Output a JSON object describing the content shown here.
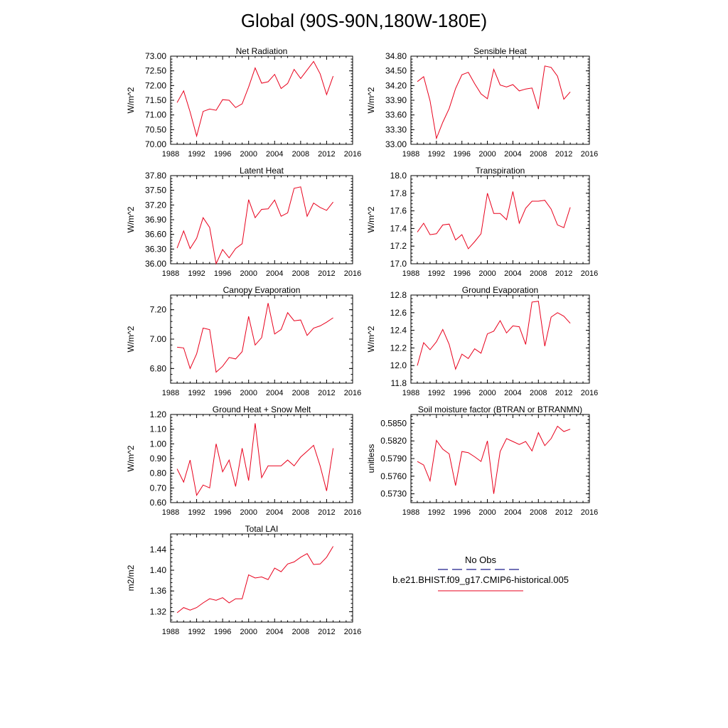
{
  "page": {
    "title": "Global (90S-90N,180W-180E)"
  },
  "chart_data": [
    {
      "type": "line",
      "title": "Net Radiation",
      "xlabel": "",
      "ylabel": "W/m^2",
      "xlim": [
        1988,
        2016
      ],
      "ylim": [
        70.0,
        73.0
      ],
      "xticks": [
        1988,
        1992,
        1996,
        2000,
        2004,
        2008,
        2012,
        2016
      ],
      "xtick_labels": [
        "1988",
        "1992",
        "1996",
        "2000",
        "2004",
        "2008",
        "2012",
        "2016"
      ],
      "yticks": [
        70.0,
        70.5,
        71.0,
        71.5,
        72.0,
        72.5,
        73.0
      ],
      "ytick_labels": [
        "70.00",
        "70.50",
        "71.00",
        "71.50",
        "72.00",
        "72.50",
        "73.00"
      ],
      "series": [
        {
          "name": "b.e21.BHIST.f09_g17.CMIP6-historical.005",
          "color": "#e8001c",
          "x": [
            1989,
            1990,
            1991,
            1992,
            1993,
            1994,
            1995,
            1996,
            1997,
            1998,
            1999,
            2000,
            2001,
            2002,
            2003,
            2004,
            2005,
            2006,
            2007,
            2008,
            2009,
            2010,
            2011,
            2012,
            2013
          ],
          "y": [
            71.42,
            71.82,
            71.1,
            70.28,
            71.12,
            71.2,
            71.16,
            71.52,
            71.5,
            71.25,
            71.38,
            71.95,
            72.6,
            72.08,
            72.13,
            72.38,
            71.9,
            72.07,
            72.55,
            72.24,
            72.53,
            72.82,
            72.4,
            71.69,
            72.32
          ]
        }
      ]
    },
    {
      "type": "line",
      "title": "Sensible Heat",
      "xlabel": "",
      "ylabel": "W/m^2",
      "xlim": [
        1988,
        2016
      ],
      "ylim": [
        33.0,
        34.8
      ],
      "xticks": [
        1988,
        1992,
        1996,
        2000,
        2004,
        2008,
        2012,
        2016
      ],
      "xtick_labels": [
        "1988",
        "1992",
        "1996",
        "2000",
        "2004",
        "2008",
        "2012",
        "2016"
      ],
      "yticks": [
        33.0,
        33.3,
        33.6,
        33.9,
        34.2,
        34.5,
        34.8
      ],
      "ytick_labels": [
        "33.00",
        "33.30",
        "33.60",
        "33.90",
        "34.20",
        "34.50",
        "34.80"
      ],
      "series": [
        {
          "name": "b.e21.BHIST.f09_g17.CMIP6-historical.005",
          "color": "#e8001c",
          "x": [
            1989,
            1990,
            1991,
            1992,
            1993,
            1994,
            1995,
            1996,
            1997,
            1998,
            1999,
            2000,
            2001,
            2002,
            2003,
            2004,
            2005,
            2006,
            2007,
            2008,
            2009,
            2010,
            2011,
            2012,
            2013
          ],
          "y": [
            34.28,
            34.38,
            33.89,
            33.12,
            33.45,
            33.73,
            34.14,
            34.42,
            34.47,
            34.24,
            34.03,
            33.93,
            34.53,
            34.21,
            34.17,
            34.22,
            34.09,
            34.13,
            34.15,
            33.72,
            34.6,
            34.57,
            34.39,
            33.92,
            34.07
          ]
        }
      ]
    },
    {
      "type": "line",
      "title": "Latent Heat",
      "xlabel": "",
      "ylabel": "W/m^2",
      "xlim": [
        1988,
        2016
      ],
      "ylim": [
        36.0,
        37.8
      ],
      "xticks": [
        1988,
        1992,
        1996,
        2000,
        2004,
        2008,
        2012,
        2016
      ],
      "xtick_labels": [
        "1988",
        "1992",
        "1996",
        "2000",
        "2004",
        "2008",
        "2012",
        "2016"
      ],
      "yticks": [
        36.0,
        36.3,
        36.6,
        36.9,
        37.2,
        37.5,
        37.8
      ],
      "ytick_labels": [
        "36.00",
        "36.30",
        "36.60",
        "36.90",
        "37.20",
        "37.50",
        "37.80"
      ],
      "series": [
        {
          "name": "b.e21.BHIST.f09_g17.CMIP6-historical.005",
          "color": "#e8001c",
          "x": [
            1989,
            1990,
            1991,
            1992,
            1993,
            1994,
            1995,
            1996,
            1997,
            1998,
            1999,
            2000,
            2001,
            2002,
            2003,
            2004,
            2005,
            2006,
            2007,
            2008,
            2009,
            2010,
            2011,
            2012,
            2013
          ],
          "y": [
            36.32,
            36.67,
            36.31,
            36.52,
            36.94,
            36.74,
            36.0,
            36.29,
            36.12,
            36.31,
            36.41,
            37.31,
            36.94,
            37.11,
            37.12,
            37.3,
            36.97,
            37.04,
            37.54,
            37.57,
            36.97,
            37.24,
            37.15,
            37.09,
            37.26
          ]
        }
      ]
    },
    {
      "type": "line",
      "title": "Transpiration",
      "xlabel": "",
      "ylabel": "W/m^2",
      "xlim": [
        1988,
        2016
      ],
      "ylim": [
        17.0,
        18.0
      ],
      "xticks": [
        1988,
        1992,
        1996,
        2000,
        2004,
        2008,
        2012,
        2016
      ],
      "xtick_labels": [
        "1988",
        "1992",
        "1996",
        "2000",
        "2004",
        "2008",
        "2012",
        "2016"
      ],
      "yticks": [
        17.0,
        17.2,
        17.4,
        17.6,
        17.8,
        18.0
      ],
      "ytick_labels": [
        "17.0",
        "17.2",
        "17.4",
        "17.6",
        "17.8",
        "18.0"
      ],
      "series": [
        {
          "name": "b.e21.BHIST.f09_g17.CMIP6-historical.005",
          "color": "#e8001c",
          "x": [
            1989,
            1990,
            1991,
            1992,
            1993,
            1994,
            1995,
            1996,
            1997,
            1998,
            1999,
            2000,
            2001,
            2002,
            2003,
            2004,
            2005,
            2006,
            2007,
            2008,
            2009,
            2010,
            2011,
            2012,
            2013
          ],
          "y": [
            17.36,
            17.46,
            17.33,
            17.34,
            17.44,
            17.45,
            17.27,
            17.33,
            17.17,
            17.25,
            17.34,
            17.8,
            17.57,
            17.57,
            17.5,
            17.82,
            17.46,
            17.63,
            17.71,
            17.71,
            17.72,
            17.62,
            17.44,
            17.41,
            17.64
          ]
        }
      ]
    },
    {
      "type": "line",
      "title": "Canopy Evaporation",
      "xlabel": "",
      "ylabel": "W/m^2",
      "xlim": [
        1988,
        2016
      ],
      "ylim": [
        6.7,
        7.3
      ],
      "xticks": [
        1988,
        1992,
        1996,
        2000,
        2004,
        2008,
        2012,
        2016
      ],
      "xtick_labels": [
        "1988",
        "1992",
        "1996",
        "2000",
        "2004",
        "2008",
        "2012",
        "2016"
      ],
      "yticks": [
        6.8,
        7.0,
        7.2
      ],
      "ytick_labels": [
        "6.80",
        "7.00",
        "7.20"
      ],
      "series": [
        {
          "name": "b.e21.BHIST.f09_g17.CMIP6-historical.005",
          "color": "#e8001c",
          "x": [
            1989,
            1990,
            1991,
            1992,
            1993,
            1994,
            1995,
            1996,
            1997,
            1998,
            1999,
            2000,
            2001,
            2002,
            2003,
            2004,
            2005,
            2006,
            2007,
            2008,
            2009,
            2010,
            2011,
            2012,
            2013
          ],
          "y": [
            6.945,
            6.94,
            6.8,
            6.9,
            7.075,
            7.065,
            6.775,
            6.815,
            6.875,
            6.865,
            6.915,
            7.155,
            6.96,
            7.01,
            7.245,
            7.035,
            7.065,
            7.18,
            7.125,
            7.13,
            7.025,
            7.075,
            7.09,
            7.115,
            7.145
          ]
        }
      ]
    },
    {
      "type": "line",
      "title": "Ground Evaporation",
      "xlabel": "",
      "ylabel": "W/m^2",
      "xlim": [
        1988,
        2016
      ],
      "ylim": [
        11.8,
        12.8
      ],
      "xticks": [
        1988,
        1992,
        1996,
        2000,
        2004,
        2008,
        2012,
        2016
      ],
      "xtick_labels": [
        "1988",
        "1992",
        "1996",
        "2000",
        "2004",
        "2008",
        "2012",
        "2016"
      ],
      "yticks": [
        11.8,
        12.0,
        12.2,
        12.4,
        12.6,
        12.8
      ],
      "ytick_labels": [
        "11.8",
        "12.0",
        "12.2",
        "12.4",
        "12.6",
        "12.8"
      ],
      "series": [
        {
          "name": "b.e21.BHIST.f09_g17.CMIP6-historical.005",
          "color": "#e8001c",
          "x": [
            1989,
            1990,
            1991,
            1992,
            1993,
            1994,
            1995,
            1996,
            1997,
            1998,
            1999,
            2000,
            2001,
            2002,
            2003,
            2004,
            2005,
            2006,
            2007,
            2008,
            2009,
            2010,
            2011,
            2012,
            2013
          ],
          "y": [
            12.0,
            12.26,
            12.18,
            12.27,
            12.41,
            12.24,
            11.96,
            12.13,
            12.08,
            12.19,
            12.14,
            12.36,
            12.39,
            12.51,
            12.37,
            12.45,
            12.44,
            12.24,
            12.72,
            12.73,
            12.22,
            12.55,
            12.6,
            12.56,
            12.48
          ]
        }
      ]
    },
    {
      "type": "line",
      "title": "Ground Heat + Snow Melt",
      "xlabel": "",
      "ylabel": "W/m^2",
      "xlim": [
        1988,
        2016
      ],
      "ylim": [
        0.6,
        1.2
      ],
      "xticks": [
        1988,
        1992,
        1996,
        2000,
        2004,
        2008,
        2012,
        2016
      ],
      "xtick_labels": [
        "1988",
        "1992",
        "1996",
        "2000",
        "2004",
        "2008",
        "2012",
        "2016"
      ],
      "yticks": [
        0.6,
        0.7,
        0.8,
        0.9,
        1.0,
        1.1,
        1.2
      ],
      "ytick_labels": [
        "0.60",
        "0.70",
        "0.80",
        "0.90",
        "1.00",
        "1.10",
        "1.20"
      ],
      "series": [
        {
          "name": "b.e21.BHIST.f09_g17.CMIP6-historical.005",
          "color": "#e8001c",
          "x": [
            1989,
            1990,
            1991,
            1992,
            1993,
            1994,
            1995,
            1996,
            1997,
            1998,
            1999,
            2000,
            2001,
            2002,
            2003,
            2004,
            2005,
            2006,
            2007,
            2008,
            2009,
            2010,
            2011,
            2012,
            2013
          ],
          "y": [
            0.83,
            0.74,
            0.89,
            0.65,
            0.72,
            0.7,
            1.0,
            0.81,
            0.89,
            0.71,
            0.97,
            0.75,
            1.14,
            0.77,
            0.85,
            0.85,
            0.85,
            0.89,
            0.85,
            0.91,
            0.95,
            0.99,
            0.85,
            0.68,
            0.97
          ]
        }
      ]
    },
    {
      "type": "line",
      "title": "Soil moisture factor (BTRAN or BTRANMN)",
      "xlabel": "",
      "ylabel": "unitless",
      "xlim": [
        1988,
        2016
      ],
      "ylim": [
        0.5715,
        0.5865
      ],
      "xticks": [
        1988,
        1992,
        1996,
        2000,
        2004,
        2008,
        2012,
        2016
      ],
      "xtick_labels": [
        "1988",
        "1992",
        "1996",
        "2000",
        "2004",
        "2008",
        "2012",
        "2016"
      ],
      "yticks": [
        0.573,
        0.576,
        0.579,
        0.582,
        0.585
      ],
      "ytick_labels": [
        "0.5730",
        "0.5760",
        "0.5790",
        "0.5820",
        "0.5850"
      ],
      "series": [
        {
          "name": "b.e21.BHIST.f09_g17.CMIP6-historical.005",
          "color": "#e8001c",
          "x": [
            1989,
            1990,
            1991,
            1992,
            1993,
            1994,
            1995,
            1996,
            1997,
            1998,
            1999,
            2000,
            2001,
            2002,
            2003,
            2004,
            2005,
            2006,
            2007,
            2008,
            2009,
            2010,
            2011,
            2012,
            2013
          ],
          "y": [
            0.5785,
            0.5779,
            0.5752,
            0.5821,
            0.5806,
            0.5798,
            0.5744,
            0.5802,
            0.58,
            0.5793,
            0.5785,
            0.582,
            0.573,
            0.5802,
            0.5824,
            0.5819,
            0.5814,
            0.5819,
            0.5803,
            0.5834,
            0.5812,
            0.5824,
            0.5845,
            0.5836,
            0.584
          ]
        }
      ]
    },
    {
      "type": "line",
      "title": "Total LAI",
      "xlabel": "",
      "ylabel": "m2/m2",
      "xlim": [
        1988,
        2016
      ],
      "ylim": [
        1.3,
        1.47
      ],
      "xticks": [
        1988,
        1992,
        1996,
        2000,
        2004,
        2008,
        2012,
        2016
      ],
      "xtick_labels": [
        "1988",
        "1992",
        "1996",
        "2000",
        "2004",
        "2008",
        "2012",
        "2016"
      ],
      "yticks": [
        1.32,
        1.36,
        1.4,
        1.44
      ],
      "ytick_labels": [
        "1.32",
        "1.36",
        "1.40",
        "1.44"
      ],
      "series": [
        {
          "name": "b.e21.BHIST.f09_g17.CMIP6-historical.005",
          "color": "#e8001c",
          "x": [
            1989,
            1990,
            1991,
            1992,
            1993,
            1994,
            1995,
            1996,
            1997,
            1998,
            1999,
            2000,
            2001,
            2002,
            2003,
            2004,
            2005,
            2006,
            2007,
            2008,
            2009,
            2010,
            2011,
            2012,
            2013
          ],
          "y": [
            1.318,
            1.328,
            1.323,
            1.328,
            1.337,
            1.345,
            1.342,
            1.347,
            1.337,
            1.345,
            1.345,
            1.391,
            1.385,
            1.387,
            1.382,
            1.404,
            1.397,
            1.412,
            1.416,
            1.425,
            1.432,
            1.411,
            1.412,
            1.425,
            1.446
          ]
        }
      ]
    }
  ],
  "legend": {
    "entries": [
      {
        "label": "No Obs",
        "color": "#1e1e8c",
        "style": "dashed"
      },
      {
        "label": "b.e21.BHIST.f09_g17.CMIP6-historical.005",
        "color": "#e8001c",
        "style": "solid"
      }
    ]
  }
}
